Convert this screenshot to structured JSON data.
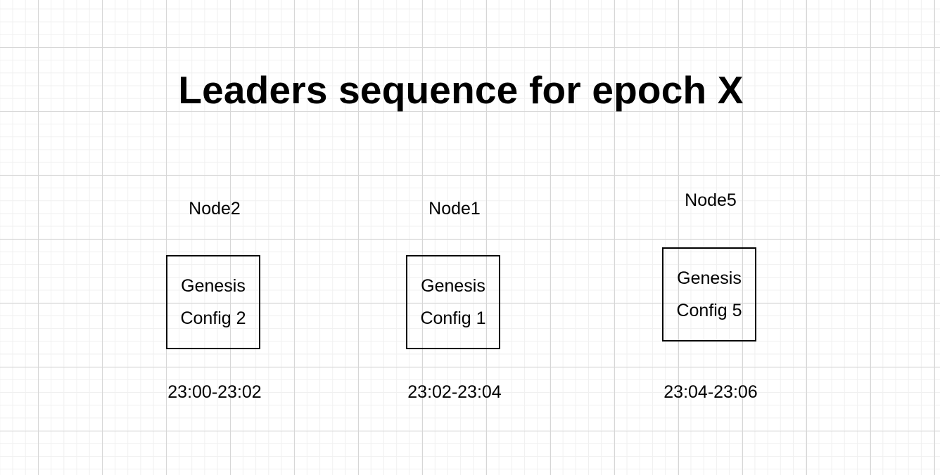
{
  "title": "Leaders sequence for epoch X",
  "leaders": [
    {
      "node": "Node2",
      "config_line1": "Genesis",
      "config_line2": "Config 2",
      "time": "23:00-23:02"
    },
    {
      "node": "Node1",
      "config_line1": "Genesis",
      "config_line2": "Config 1",
      "time": "23:02-23:04"
    },
    {
      "node": "Node5",
      "config_line1": "Genesis",
      "config_line2": "Config 5",
      "time": "23:04-23:06"
    }
  ]
}
